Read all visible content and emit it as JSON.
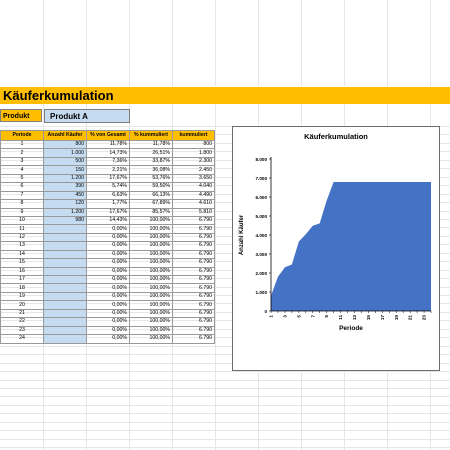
{
  "title": "Käuferkumulation",
  "product": {
    "label": "Produkt",
    "value": "Produkt A"
  },
  "table": {
    "headers": [
      "Periode",
      "Anzahl Käufer",
      "% von Gesamt",
      "% kummuliert",
      "kummuliert"
    ],
    "rows": [
      [
        "1",
        "800",
        "11,78%",
        "11,78%",
        "800"
      ],
      [
        "2",
        "1.000",
        "14,73%",
        "26,51%",
        "1.800"
      ],
      [
        "3",
        "500",
        "7,36%",
        "33,87%",
        "2.300"
      ],
      [
        "4",
        "150",
        "2,21%",
        "36,08%",
        "2.450"
      ],
      [
        "5",
        "1.200",
        "17,67%",
        "53,76%",
        "3.650"
      ],
      [
        "6",
        "390",
        "5,74%",
        "59,50%",
        "4.040"
      ],
      [
        "7",
        "450",
        "6,63%",
        "66,13%",
        "4.490"
      ],
      [
        "8",
        "120",
        "1,77%",
        "67,89%",
        "4.610"
      ],
      [
        "9",
        "1.200",
        "17,67%",
        "85,57%",
        "5.810"
      ],
      [
        "10",
        "980",
        "14,43%",
        "100,00%",
        "6.790"
      ],
      [
        "11",
        "",
        "0,00%",
        "100,00%",
        "6.790"
      ],
      [
        "12",
        "",
        "0,00%",
        "100,00%",
        "6.790"
      ],
      [
        "13",
        "",
        "0,00%",
        "100,00%",
        "6.790"
      ],
      [
        "14",
        "",
        "0,00%",
        "100,00%",
        "6.790"
      ],
      [
        "15",
        "",
        "0,00%",
        "100,00%",
        "6.790"
      ],
      [
        "16",
        "",
        "0,00%",
        "100,00%",
        "6.790"
      ],
      [
        "17",
        "",
        "0,00%",
        "100,00%",
        "6.790"
      ],
      [
        "18",
        "",
        "0,00%",
        "100,00%",
        "6.790"
      ],
      [
        "19",
        "",
        "0,00%",
        "100,00%",
        "6.790"
      ],
      [
        "20",
        "",
        "0,00%",
        "100,00%",
        "6.790"
      ],
      [
        "21",
        "",
        "0,00%",
        "100,00%",
        "6.790"
      ],
      [
        "22",
        "",
        "0,00%",
        "100,00%",
        "6.790"
      ],
      [
        "23",
        "",
        "0,00%",
        "100,00%",
        "6.790"
      ],
      [
        "24",
        "",
        "0,00%",
        "100,00%",
        "6.790"
      ]
    ]
  },
  "colors": {
    "header_fill": "#ffbf00",
    "input_fill": "#c5dcf0",
    "area_fill": "#4472c4"
  },
  "chart_data": {
    "type": "area",
    "title": "Käuferkumulation",
    "xlabel": "Periode",
    "ylabel": "Anzahl Käufer",
    "x": [
      1,
      2,
      3,
      4,
      5,
      6,
      7,
      8,
      9,
      10,
      11,
      12,
      13,
      14,
      15,
      16,
      17,
      18,
      19,
      20,
      21,
      22,
      23,
      24
    ],
    "x_tick_labels": [
      "1",
      "3",
      "5",
      "7",
      "9",
      "11",
      "13",
      "15",
      "17",
      "19",
      "21",
      "23"
    ],
    "values": [
      800,
      1800,
      2300,
      2450,
      3650,
      4040,
      4490,
      4610,
      5810,
      6790,
      6790,
      6790,
      6790,
      6790,
      6790,
      6790,
      6790,
      6790,
      6790,
      6790,
      6790,
      6790,
      6790,
      6790
    ],
    "y_tick_labels": [
      "0",
      "1.000",
      "2.000",
      "3.000",
      "4.000",
      "5.000",
      "6.000",
      "7.000",
      "8.000"
    ],
    "ylim": [
      0,
      8000
    ],
    "grid": false,
    "legend": "none"
  }
}
